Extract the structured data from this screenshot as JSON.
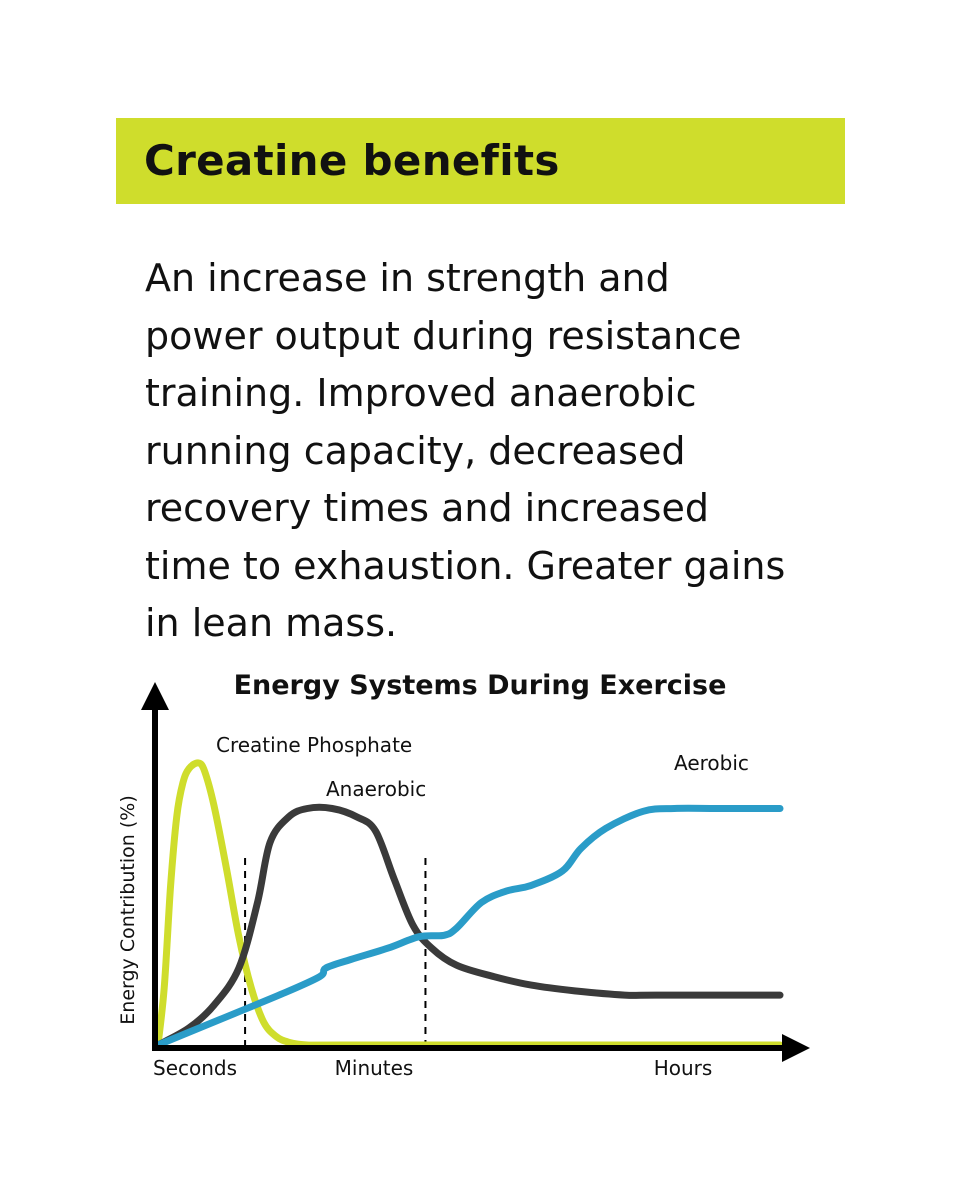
{
  "header": {
    "title": "Creatine benefits"
  },
  "body": {
    "lines": [
      "An increase in strength and",
      "power output during resistance",
      "training. Improved anaerobic",
      "running capacity, decreased",
      "recovery times and increased",
      "time to exhaustion. Greater gains",
      "in lean mass."
    ]
  },
  "colors": {
    "banner": "#cfdd2c",
    "creatine_phosphate": "#cfdd2c",
    "anaerobic": "#3a3a3a",
    "aerobic": "#2a9cc8",
    "axis": "#000000"
  },
  "chart_data": {
    "type": "line",
    "title": "Energy Systems During Exercise",
    "xlabel": "",
    "ylabel": "Energy Contribution (%)",
    "x_categories": [
      "Seconds",
      "Minutes",
      "Hours"
    ],
    "xlim": [
      0,
      100
    ],
    "ylim": [
      0,
      100
    ],
    "phase_dividers": [
      14,
      43
    ],
    "series": [
      {
        "name": "Creatine Phosphate",
        "color": "#cfdd2c",
        "points": [
          [
            0,
            0
          ],
          [
            1,
            20
          ],
          [
            2,
            55
          ],
          [
            3,
            80
          ],
          [
            4,
            92
          ],
          [
            5,
            97
          ],
          [
            6.5,
            99
          ],
          [
            7.5,
            96
          ],
          [
            9,
            84
          ],
          [
            11,
            62
          ],
          [
            13,
            38
          ],
          [
            15,
            20
          ],
          [
            17,
            8
          ],
          [
            19,
            3
          ],
          [
            21,
            1
          ],
          [
            24,
            0
          ],
          [
            30,
            0
          ],
          [
            100,
            0
          ]
        ]
      },
      {
        "name": "Anaerobic",
        "color": "#3a3a3a",
        "points": [
          [
            0,
            0
          ],
          [
            5,
            6
          ],
          [
            9,
            14
          ],
          [
            13,
            27
          ],
          [
            16,
            50
          ],
          [
            18,
            71
          ],
          [
            21,
            80
          ],
          [
            24,
            83
          ],
          [
            28,
            83
          ],
          [
            32,
            80
          ],
          [
            35,
            75
          ],
          [
            38,
            58
          ],
          [
            41,
            42
          ],
          [
            44,
            34
          ],
          [
            48,
            28
          ],
          [
            54,
            24
          ],
          [
            60,
            21
          ],
          [
            67,
            19
          ],
          [
            75,
            17.5
          ],
          [
            80,
            17.5
          ],
          [
            100,
            17.5
          ]
        ]
      },
      {
        "name": "Aerobic",
        "color": "#2a9cc8",
        "points": [
          [
            0,
            0
          ],
          [
            10,
            9
          ],
          [
            20,
            18
          ],
          [
            26,
            24
          ],
          [
            27,
            27
          ],
          [
            31,
            30
          ],
          [
            37,
            34
          ],
          [
            42,
            38
          ],
          [
            46,
            38.5
          ],
          [
            48,
            41
          ],
          [
            52,
            50
          ],
          [
            56,
            54
          ],
          [
            60,
            56
          ],
          [
            65,
            61
          ],
          [
            68,
            69
          ],
          [
            72,
            76
          ],
          [
            78,
            82
          ],
          [
            83,
            83
          ],
          [
            90,
            83
          ],
          [
            100,
            83
          ]
        ]
      }
    ]
  }
}
